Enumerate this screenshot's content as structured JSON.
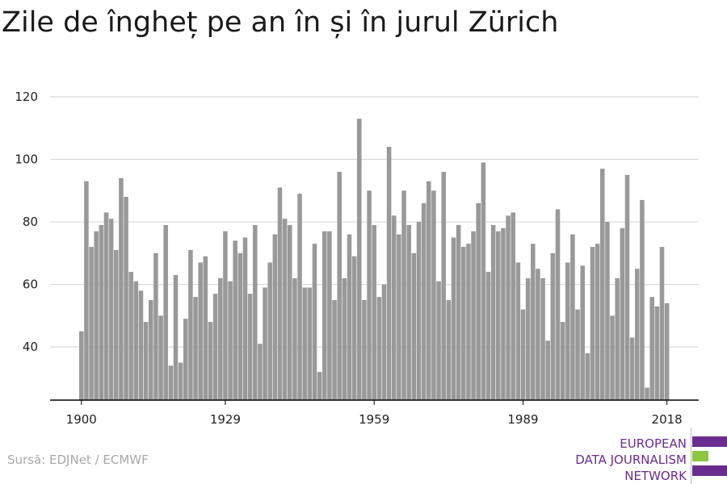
{
  "title": "Zile de îngheț pe an în și în jurul Zürich",
  "source": "Sursă: EDJNet / ECMWF",
  "logo": {
    "lines": [
      "EUROPEAN",
      "DATA JOURNALISM",
      "NETWORK"
    ],
    "colors": [
      "#6a2d8f",
      "#8dc63f",
      "#6a2d8f"
    ]
  },
  "colors": {
    "bar": "#999999",
    "grid": "#d9d9d9",
    "axis": "#000000"
  },
  "chart_data": {
    "type": "bar",
    "title": "Zile de îngheț pe an în și în jurul Zürich",
    "xlabel": "",
    "ylabel": "",
    "ylim": [
      23,
      120
    ],
    "yticks": [
      40,
      60,
      80,
      100,
      120
    ],
    "xticks": [
      1900,
      1929,
      1959,
      1989,
      2018
    ],
    "grid": true,
    "x_start": 1900,
    "x_end": 2018,
    "values": [
      45,
      93,
      72,
      77,
      79,
      83,
      81,
      71,
      94,
      88,
      64,
      61,
      58,
      48,
      55,
      70,
      50,
      79,
      34,
      63,
      35,
      49,
      71,
      56,
      67,
      69,
      48,
      57,
      62,
      77,
      61,
      74,
      70,
      75,
      57,
      79,
      41,
      59,
      67,
      76,
      91,
      81,
      79,
      62,
      89,
      59,
      59,
      73,
      32,
      77,
      77,
      55,
      96,
      62,
      76,
      69,
      113,
      55,
      90,
      79,
      56,
      60,
      104,
      82,
      76,
      90,
      79,
      70,
      80,
      86,
      93,
      90,
      61,
      96,
      55,
      75,
      79,
      72,
      73,
      77,
      86,
      99,
      64,
      79,
      77,
      78,
      82,
      83,
      67,
      52,
      62,
      73,
      65,
      62,
      42,
      70,
      84,
      48,
      67,
      76,
      52,
      66,
      38,
      72,
      73,
      97,
      80,
      50,
      62,
      78,
      95,
      43,
      65,
      87,
      27,
      56,
      53,
      72,
      54
    ]
  }
}
